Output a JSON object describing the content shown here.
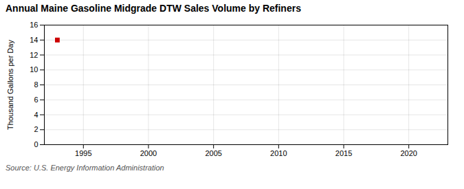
{
  "chart_data": {
    "type": "scatter",
    "title": "Annual Maine Gasoline Midgrade DTW Sales Volume by Refiners",
    "ylabel": "Thousand Gallons per Day",
    "caption": "Source: U.S. Energy Information Administration",
    "x": [
      1993
    ],
    "values": [
      14.0
    ],
    "color": "#cc0000",
    "marker": "square",
    "xlim": [
      1992,
      2023
    ],
    "ylim": [
      0,
      16
    ],
    "xticks": [
      1995,
      2000,
      2005,
      2010,
      2015,
      2020
    ],
    "yticks": [
      0,
      2,
      4,
      6,
      8,
      10,
      12,
      14,
      16
    ],
    "grid": true
  }
}
